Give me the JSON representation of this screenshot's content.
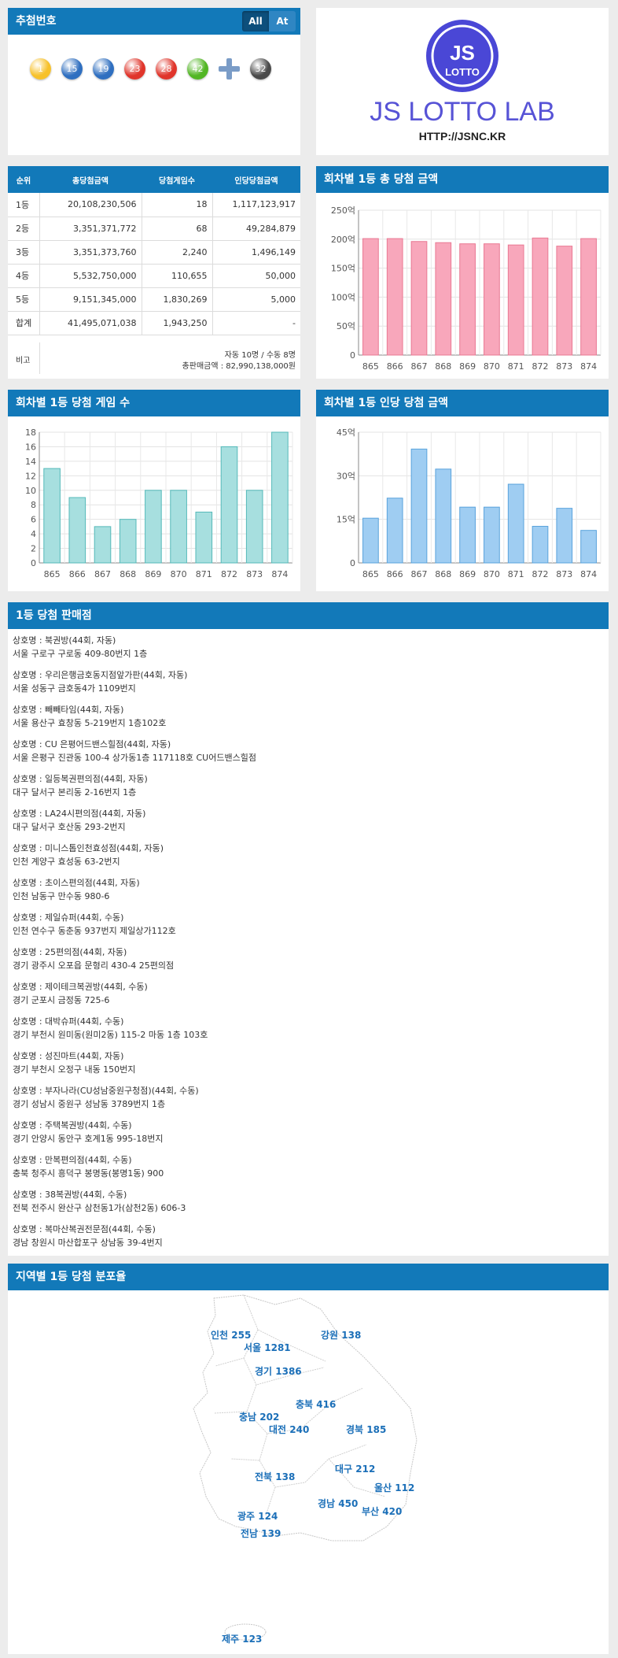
{
  "draw": {
    "title": "추첨번호",
    "toggle": [
      "All",
      "At"
    ],
    "balls": [
      {
        "n": "1",
        "color": "#f7c12a"
      },
      {
        "n": "15",
        "color": "#2f6fc0"
      },
      {
        "n": "19",
        "color": "#2f6fc0"
      },
      {
        "n": "23",
        "color": "#e0352b"
      },
      {
        "n": "28",
        "color": "#e0352b"
      },
      {
        "n": "42",
        "color": "#52b624"
      },
      {
        "n": "32",
        "color": "#4a4a4a"
      }
    ]
  },
  "logo": {
    "text": "JS LOTTO LAB",
    "badge_top": "JS",
    "badge_bottom": "LOTTO",
    "url": "HTTP://JSNC.KR"
  },
  "prize_table": {
    "headers": [
      "순위",
      "총당첨금액",
      "당첨게임수",
      "인당당첨금액"
    ],
    "rows": [
      [
        "1등",
        "20,108,230,506",
        "18",
        "1,117,123,917"
      ],
      [
        "2등",
        "3,351,371,772",
        "68",
        "49,284,879"
      ],
      [
        "3등",
        "3,351,373,760",
        "2,240",
        "1,496,149"
      ],
      [
        "4등",
        "5,532,750,000",
        "110,655",
        "50,000"
      ],
      [
        "5등",
        "9,151,345,000",
        "1,830,269",
        "5,000"
      ],
      [
        "합계",
        "41,495,071,038",
        "1,943,250",
        "-"
      ]
    ],
    "note_label": "비고",
    "note_line1": "자동 10명 / 수동 8명",
    "note_line2": "총판매금액 : 82,990,138,000원"
  },
  "charts": {
    "total": {
      "title": "회차별 1등 총 당첨 금액",
      "chart_data": {
        "type": "bar",
        "categories": [
          "865",
          "866",
          "867",
          "868",
          "869",
          "870",
          "871",
          "872",
          "873",
          "874"
        ],
        "values": [
          201,
          201,
          196,
          194,
          192,
          192,
          190,
          202,
          188,
          201
        ],
        "ylim": [
          0,
          250
        ],
        "yticks": [
          "0",
          "50억",
          "100억",
          "150억",
          "200억",
          "250억"
        ],
        "color": "#f8a7bb",
        "stroke": "#e97993"
      }
    },
    "games": {
      "title": "회차별 1등 당첨 게임 수",
      "chart_data": {
        "type": "bar",
        "categories": [
          "865",
          "866",
          "867",
          "868",
          "869",
          "870",
          "871",
          "872",
          "873",
          "874"
        ],
        "values": [
          13,
          9,
          5,
          6,
          10,
          10,
          7,
          16,
          10,
          18
        ],
        "ylim": [
          0,
          18
        ],
        "yticks": [
          "0",
          "2",
          "4",
          "6",
          "8",
          "10",
          "12",
          "14",
          "16",
          "18"
        ],
        "color": "#a7dfdf",
        "stroke": "#55b9b9"
      }
    },
    "per": {
      "title": "회차별 1등 인당 당첨 금액",
      "chart_data": {
        "type": "bar",
        "categories": [
          "865",
          "866",
          "867",
          "868",
          "869",
          "870",
          "871",
          "872",
          "873",
          "874"
        ],
        "values": [
          15.4,
          22.3,
          39.2,
          32.3,
          19.2,
          19.2,
          27.1,
          12.6,
          18.8,
          11.2
        ],
        "ylim": [
          0,
          45
        ],
        "yticks": [
          "0",
          "15억",
          "30억",
          "45억"
        ],
        "color": "#9fcdf2",
        "stroke": "#5aa3dc"
      }
    }
  },
  "stores": {
    "title": "1등 당첨 판매점",
    "items": [
      {
        "name": "상호명 : 북권방(44회, 자동)",
        "addr": "서울 구로구 구로동 409-80번지 1층"
      },
      {
        "name": "상호명 : 우리은행금호동지점앞가판(44회, 자동)",
        "addr": "서울 성동구 금호동4가 1109번지"
      },
      {
        "name": "상호명 : 빼빼타임(44회, 자동)",
        "addr": "서울 용산구 효창동 5-219번지 1층102호"
      },
      {
        "name": "상호명 : CU 은평어드밴스힐점(44회, 자동)",
        "addr": "서울 은평구 진관동 100-4 상가동1층 117118호 CU어드밴스힐점"
      },
      {
        "name": "상호명 : 일등복권편의점(44회, 자동)",
        "addr": "대구 달서구 본리동 2-16번지 1층"
      },
      {
        "name": "상호명 : LA24시편의점(44회, 자동)",
        "addr": "대구 달서구 호산동 293-2번지"
      },
      {
        "name": "상호명 : 미니스톱인천효성점(44회, 자동)",
        "addr": "인천 계양구 효성동 63-2번지"
      },
      {
        "name": "상호명 : 초이스편의점(44회, 자동)",
        "addr": "인천 남동구 만수동 980-6"
      },
      {
        "name": "상호명 : 제일슈퍼(44회, 수동)",
        "addr": "인천 연수구 동춘동 937번지 제일상가112호"
      },
      {
        "name": "상호명 : 25편의점(44회, 자동)",
        "addr": "경기 광주시 오포읍 문형리 430-4 25편의점"
      },
      {
        "name": "상호명 : 제이테크복권방(44회, 수동)",
        "addr": "경기 군포시 금정동 725-6"
      },
      {
        "name": "상호명 : 대박슈퍼(44회, 수동)",
        "addr": "경기 부천시 원미동(원미2동) 115-2 마동 1층 103호"
      },
      {
        "name": "상호명 : 성진마트(44회, 자동)",
        "addr": "경기 부천시 오정구 내동 150번지"
      },
      {
        "name": "상호명 : 부자나라(CU성남중원구청점)(44회, 수동)",
        "addr": "경기 성남시 중원구 성남동 3789번지 1층"
      },
      {
        "name": "상호명 : 주택복권방(44회, 수동)",
        "addr": "경기 안양시 동안구 호계1동 995-18번지"
      },
      {
        "name": "상호명 : 만복편의점(44회, 수동)",
        "addr": "충북 청주시 흥덕구 봉명동(봉명1동) 900"
      },
      {
        "name": "상호명 : 38복권방(44회, 수동)",
        "addr": "전북 전주시 완산구 삼천동1가(삼천2동) 606-3"
      },
      {
        "name": "상호명 : 복마산복권전문점(44회, 수동)",
        "addr": "경남 창원시 마산합포구 상남동 39-4번지"
      }
    ]
  },
  "region": {
    "title": "지역별 1등 당첨 분포율",
    "items": [
      {
        "label": "인천 255"
      },
      {
        "label": "서울 1281"
      },
      {
        "label": "강원 138"
      },
      {
        "label": "경기 1386"
      },
      {
        "label": "충북 416"
      },
      {
        "label": "충남 202"
      },
      {
        "label": "대전 240"
      },
      {
        "label": "경북 185"
      },
      {
        "label": "전북 138"
      },
      {
        "label": "대구 212"
      },
      {
        "label": "울산 112"
      },
      {
        "label": "경남 450"
      },
      {
        "label": "부산 420"
      },
      {
        "label": "광주 124"
      },
      {
        "label": "전남 139"
      },
      {
        "label": "제주 123"
      }
    ]
  }
}
